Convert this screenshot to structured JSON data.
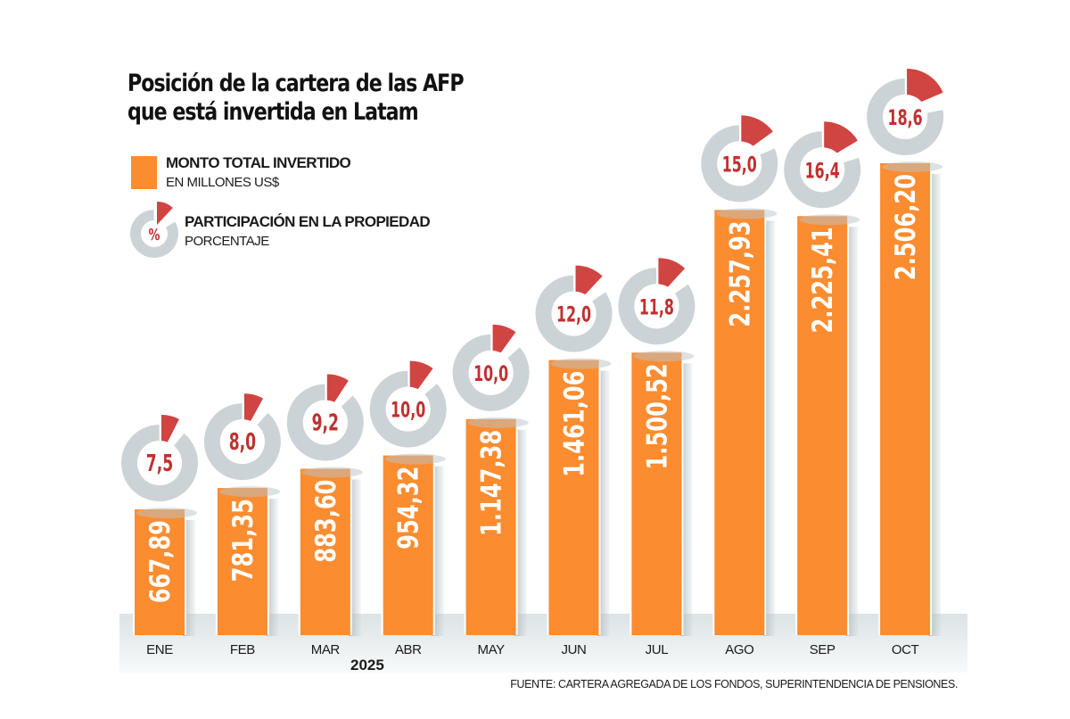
{
  "title": {
    "line1": "Posición de la cartera de las AFP",
    "line2": "que está invertida en Latam"
  },
  "legend": {
    "bars": {
      "label": "MONTO TOTAL INVERTIDO",
      "sublabel": "EN MILLONES US$",
      "color": "#fb8c30"
    },
    "donut": {
      "label": "PARTICIPACIÓN EN LA PROPIEDAD",
      "sublabel": "PORCENTAJE",
      "symbol": "%",
      "color": "#d04442"
    }
  },
  "year_label": "2025",
  "source": "FUENTE: CARTERA AGREGADA DE LOS FONDOS, SUPERINTENDENCIA DE PENSIONES.",
  "colors": {
    "bar": "#fb8c30",
    "bar_text": "#ffffff",
    "donut_ring": "#ccd3d6",
    "donut_slice": "#d04442",
    "donut_text": "#c0302f",
    "band": "#dfe6e8"
  },
  "chart_data": {
    "type": "bar",
    "title": "Posición de la cartera de las AFP que está invertida en Latam",
    "xlabel": "2025",
    "ylabel": "",
    "categories": [
      "ENE",
      "FEB",
      "MAR",
      "ABR",
      "MAY",
      "JUN",
      "JUL",
      "AGO",
      "SEP",
      "OCT"
    ],
    "series": [
      {
        "name": "MONTO TOTAL INVERTIDO (EN MILLONES US$)",
        "values": [
          667.89,
          781.35,
          883.6,
          954.32,
          1147.38,
          1461.06,
          1500.52,
          2257.93,
          2225.41,
          2506.2
        ],
        "labels": [
          "667,89",
          "781,35",
          "883,60",
          "954,32",
          "1.147,38",
          "1.461,06",
          "1.500,52",
          "2.257,93",
          "2.225,41",
          "2.506,20"
        ]
      },
      {
        "name": "PARTICIPACIÓN EN LA PROPIEDAD (PORCENTAJE)",
        "values": [
          7.5,
          8.0,
          9.2,
          10.0,
          10.0,
          12.0,
          11.8,
          15.0,
          16.4,
          18.6
        ],
        "labels": [
          "7,5",
          "8,0",
          "9,2",
          "10,0",
          "10,0",
          "12,0",
          "11,8",
          "15,0",
          "16,4",
          "18,6"
        ]
      }
    ],
    "grid": false,
    "legend_position": "top-left"
  }
}
